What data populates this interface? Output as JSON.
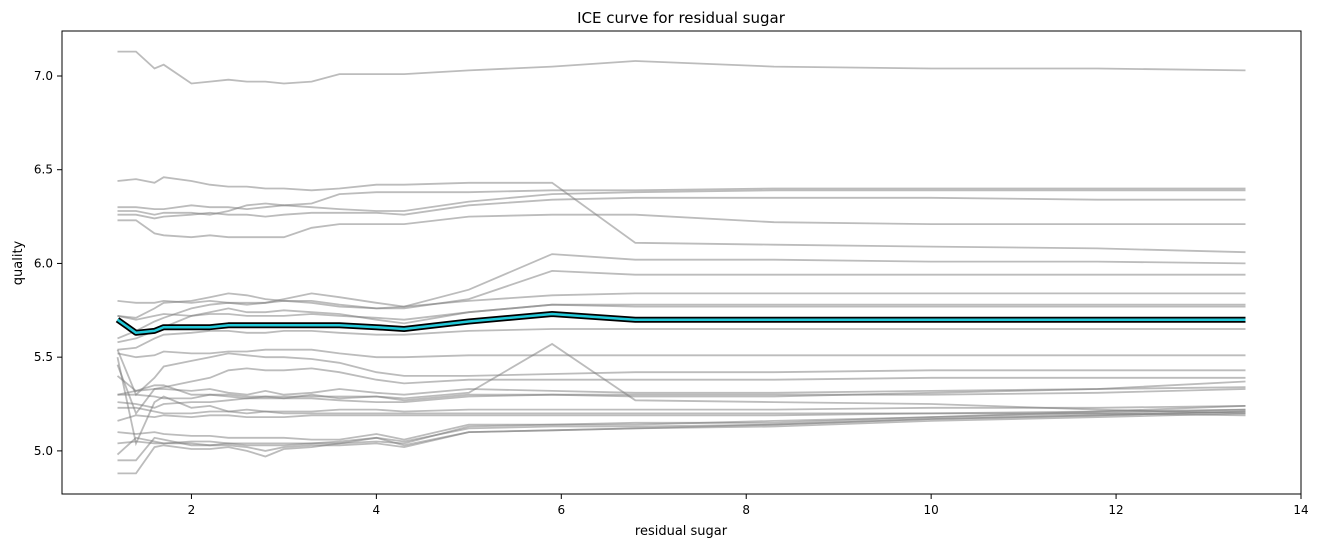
{
  "chart_data": {
    "type": "line",
    "title": "ICE curve for residual sugar",
    "xlabel": "residual sugar",
    "ylabel": "quality",
    "xlim": [
      0.6,
      14.0
    ],
    "ylim": [
      4.77,
      7.24
    ],
    "xticks": [
      2,
      4,
      6,
      8,
      10,
      12,
      14
    ],
    "yticks": [
      5.0,
      5.5,
      6.0,
      6.5,
      7.0
    ],
    "grid": false,
    "legend": "none",
    "colors": {
      "ice_line": "#7a7a7a",
      "average_outline": "#000000",
      "average_fill": "#22c8d8"
    },
    "x": [
      1.2,
      1.4,
      1.6,
      1.7,
      2.0,
      2.2,
      2.4,
      2.6,
      2.8,
      3.0,
      3.3,
      3.6,
      4.0,
      4.3,
      5.0,
      5.9,
      6.8,
      8.3,
      10.0,
      11.8,
      13.4
    ],
    "series": [
      {
        "values": [
          7.13,
          7.13,
          7.04,
          7.06,
          6.96,
          6.97,
          6.98,
          6.97,
          6.97,
          6.96,
          6.97,
          7.01,
          7.01,
          7.01,
          7.03,
          7.05,
          7.08,
          7.05,
          7.04,
          7.04,
          7.03
        ]
      },
      {
        "values": [
          6.44,
          6.45,
          6.43,
          6.46,
          6.44,
          6.42,
          6.41,
          6.41,
          6.4,
          6.4,
          6.39,
          6.4,
          6.42,
          6.42,
          6.43,
          6.43,
          6.11,
          6.1,
          6.09,
          6.08,
          6.06
        ]
      },
      {
        "values": [
          6.3,
          6.3,
          6.29,
          6.29,
          6.31,
          6.3,
          6.3,
          6.29,
          6.3,
          6.31,
          6.32,
          6.37,
          6.38,
          6.38,
          6.38,
          6.39,
          6.39,
          6.4,
          6.4,
          6.4,
          6.4
        ]
      },
      {
        "values": [
          6.28,
          6.28,
          6.26,
          6.27,
          6.27,
          6.26,
          6.28,
          6.31,
          6.32,
          6.31,
          6.3,
          6.29,
          6.28,
          6.28,
          6.33,
          6.37,
          6.38,
          6.39,
          6.39,
          6.39,
          6.39
        ]
      },
      {
        "values": [
          6.26,
          6.26,
          6.24,
          6.25,
          6.26,
          6.27,
          6.26,
          6.26,
          6.25,
          6.26,
          6.27,
          6.27,
          6.27,
          6.26,
          6.31,
          6.34,
          6.35,
          6.35,
          6.35,
          6.34,
          6.34
        ]
      },
      {
        "values": [
          6.23,
          6.23,
          6.16,
          6.15,
          6.14,
          6.15,
          6.14,
          6.14,
          6.14,
          6.14,
          6.19,
          6.21,
          6.21,
          6.21,
          6.25,
          6.26,
          6.26,
          6.22,
          6.21,
          6.21,
          6.21
        ]
      },
      {
        "values": [
          5.8,
          5.79,
          5.79,
          5.8,
          5.79,
          5.8,
          5.79,
          5.79,
          5.79,
          5.8,
          5.79,
          5.77,
          5.76,
          5.77,
          5.86,
          6.05,
          6.02,
          6.02,
          6.01,
          6.01,
          6.0
        ]
      },
      {
        "values": [
          5.72,
          5.71,
          5.76,
          5.79,
          5.8,
          5.82,
          5.84,
          5.83,
          5.81,
          5.8,
          5.8,
          5.78,
          5.76,
          5.76,
          5.81,
          5.96,
          5.94,
          5.94,
          5.94,
          5.94,
          5.94
        ]
      },
      {
        "values": [
          5.6,
          5.64,
          5.69,
          5.71,
          5.76,
          5.78,
          5.79,
          5.78,
          5.79,
          5.81,
          5.84,
          5.82,
          5.79,
          5.77,
          5.8,
          5.83,
          5.84,
          5.84,
          5.84,
          5.84,
          5.84
        ]
      },
      {
        "values": [
          5.58,
          5.6,
          5.64,
          5.66,
          5.72,
          5.74,
          5.76,
          5.74,
          5.74,
          5.75,
          5.74,
          5.73,
          5.7,
          5.68,
          5.74,
          5.78,
          5.78,
          5.78,
          5.78,
          5.78,
          5.78
        ]
      },
      {
        "values": [
          5.72,
          5.7,
          5.72,
          5.73,
          5.72,
          5.73,
          5.73,
          5.72,
          5.72,
          5.72,
          5.73,
          5.72,
          5.71,
          5.7,
          5.74,
          5.78,
          5.77,
          5.77,
          5.77,
          5.77,
          5.77
        ]
      },
      {
        "values": [
          5.54,
          5.55,
          5.6,
          5.62,
          5.63,
          5.64,
          5.64,
          5.63,
          5.63,
          5.64,
          5.64,
          5.63,
          5.62,
          5.62,
          5.64,
          5.65,
          5.65,
          5.65,
          5.65,
          5.65,
          5.65
        ]
      },
      {
        "values": [
          5.52,
          5.5,
          5.51,
          5.53,
          5.52,
          5.52,
          5.53,
          5.53,
          5.54,
          5.54,
          5.54,
          5.52,
          5.5,
          5.5,
          5.51,
          5.51,
          5.51,
          5.51,
          5.51,
          5.51,
          5.51
        ]
      },
      {
        "values": [
          5.54,
          5.3,
          5.39,
          5.45,
          5.48,
          5.5,
          5.52,
          5.51,
          5.5,
          5.5,
          5.49,
          5.47,
          5.42,
          5.4,
          5.4,
          5.41,
          5.42,
          5.42,
          5.43,
          5.43,
          5.43
        ]
      },
      {
        "values": [
          5.46,
          5.2,
          5.33,
          5.34,
          5.37,
          5.39,
          5.43,
          5.44,
          5.43,
          5.43,
          5.44,
          5.42,
          5.38,
          5.36,
          5.38,
          5.38,
          5.38,
          5.38,
          5.39,
          5.39,
          5.39
        ]
      },
      {
        "values": [
          5.4,
          5.32,
          5.33,
          5.33,
          5.32,
          5.33,
          5.31,
          5.3,
          5.32,
          5.3,
          5.31,
          5.33,
          5.31,
          5.3,
          5.33,
          5.32,
          5.31,
          5.31,
          5.32,
          5.33,
          5.34
        ]
      },
      {
        "values": [
          5.3,
          5.3,
          5.29,
          5.28,
          5.28,
          5.3,
          5.29,
          5.28,
          5.28,
          5.28,
          5.28,
          5.27,
          5.26,
          5.26,
          5.29,
          5.3,
          5.3,
          5.3,
          5.3,
          5.31,
          5.33
        ]
      },
      {
        "values": [
          5.26,
          5.25,
          5.23,
          5.25,
          5.26,
          5.26,
          5.27,
          5.28,
          5.29,
          5.28,
          5.3,
          5.28,
          5.29,
          5.27,
          5.3,
          5.3,
          5.29,
          5.29,
          5.31,
          5.33,
          5.37
        ]
      },
      {
        "values": [
          5.5,
          5.04,
          5.26,
          5.29,
          5.23,
          5.24,
          5.21,
          5.22,
          5.21,
          5.21,
          5.21,
          5.22,
          5.22,
          5.21,
          5.22,
          5.22,
          5.22,
          5.22,
          5.23,
          5.23,
          5.24
        ]
      },
      {
        "values": [
          5.23,
          5.23,
          5.21,
          5.2,
          5.2,
          5.21,
          5.21,
          5.2,
          5.21,
          5.2,
          5.2,
          5.2,
          5.2,
          5.2,
          5.2,
          5.2,
          5.2,
          5.2,
          5.2,
          5.21,
          5.22
        ]
      },
      {
        "values": [
          5.16,
          5.19,
          5.18,
          5.19,
          5.18,
          5.19,
          5.19,
          5.18,
          5.18,
          5.18,
          5.19,
          5.19,
          5.19,
          5.19,
          5.19,
          5.19,
          5.19,
          5.19,
          5.2,
          5.2,
          5.19
        ]
      },
      {
        "values": [
          5.1,
          5.09,
          5.1,
          5.09,
          5.08,
          5.08,
          5.07,
          5.07,
          5.07,
          5.07,
          5.06,
          5.06,
          5.09,
          5.06,
          5.14,
          5.14,
          5.14,
          5.16,
          5.18,
          5.2,
          5.22
        ]
      },
      {
        "values": [
          5.04,
          5.05,
          5.04,
          5.04,
          5.05,
          5.05,
          5.04,
          5.04,
          5.04,
          5.04,
          5.04,
          5.04,
          5.05,
          5.04,
          5.13,
          5.14,
          5.15,
          5.15,
          5.18,
          5.21,
          5.24
        ]
      },
      {
        "values": [
          4.98,
          5.07,
          5.05,
          5.04,
          5.04,
          5.03,
          5.04,
          5.03,
          5.03,
          5.03,
          5.04,
          5.05,
          5.07,
          5.05,
          5.12,
          5.13,
          5.13,
          5.14,
          5.17,
          5.19,
          5.21
        ]
      },
      {
        "values": [
          4.95,
          4.95,
          5.07,
          5.06,
          5.03,
          5.03,
          5.03,
          5.02,
          5.0,
          5.02,
          5.03,
          5.03,
          5.04,
          5.02,
          5.1,
          5.11,
          5.12,
          5.14,
          5.17,
          5.19,
          5.21
        ]
      },
      {
        "values": [
          4.88,
          4.88,
          5.02,
          5.03,
          5.01,
          5.01,
          5.02,
          5.0,
          4.97,
          5.01,
          5.02,
          5.04,
          5.07,
          5.03,
          5.1,
          5.11,
          5.12,
          5.13,
          5.16,
          5.18,
          5.2
        ]
      },
      {
        "values": [
          5.3,
          5.32,
          5.35,
          5.35,
          5.3,
          5.3,
          5.3,
          5.29,
          5.29,
          5.29,
          5.29,
          5.29,
          5.29,
          5.28,
          5.31,
          5.57,
          5.27,
          5.26,
          5.25,
          5.22,
          5.2
        ]
      }
    ],
    "average": {
      "values": [
        5.7,
        5.63,
        5.64,
        5.66,
        5.66,
        5.66,
        5.67,
        5.67,
        5.67,
        5.67,
        5.67,
        5.67,
        5.66,
        5.65,
        5.69,
        5.73,
        5.7,
        5.7,
        5.7,
        5.7,
        5.7
      ]
    }
  }
}
